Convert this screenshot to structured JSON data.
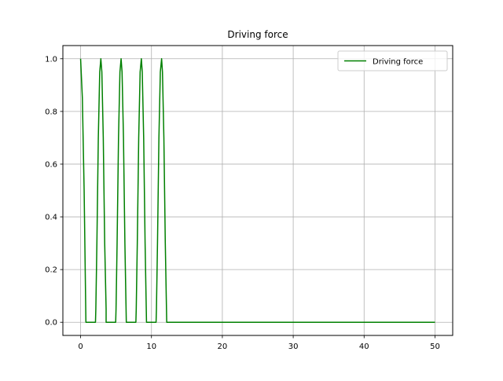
{
  "chart_data": {
    "type": "line",
    "title": "Driving force",
    "xlabel": "",
    "ylabel": "",
    "xlim": [
      -2.5,
      52.5
    ],
    "ylim": [
      -0.05,
      1.05
    ],
    "xticks": [
      0,
      10,
      20,
      30,
      40,
      50
    ],
    "xtick_labels": [
      "0",
      "10",
      "20",
      "30",
      "40",
      "50"
    ],
    "yticks": [
      0.0,
      0.2,
      0.4,
      0.6,
      0.8,
      1.0
    ],
    "ytick_labels": [
      "0.0",
      "0.2",
      "0.4",
      "0.6",
      "0.8",
      "1.0"
    ],
    "grid": true,
    "legend": {
      "position": "upper right"
    },
    "series": [
      {
        "name": "Driving force",
        "color": "#008000",
        "shape": "periodic pulses of |cos(π t / 2.857)|^4 style peaks clipped to 0, ending near t = 12",
        "x": [
          0,
          0.25,
          0.5,
          0.625,
          0.75,
          2.1,
          2.15,
          2.3,
          2.5,
          2.7,
          2.857,
          3.0,
          3.2,
          3.4,
          3.6,
          3.6,
          4.95,
          5.0,
          5.15,
          5.35,
          5.55,
          5.714,
          5.85,
          6.05,
          6.25,
          6.45,
          6.45,
          7.8,
          7.85,
          8.0,
          8.2,
          8.4,
          8.571,
          8.7,
          8.9,
          9.1,
          9.3,
          9.3,
          10.65,
          10.7,
          10.85,
          11.05,
          11.25,
          11.43,
          11.55,
          11.75,
          11.95,
          12.15,
          12.15,
          50
        ],
        "y": [
          1.0,
          0.85,
          0.5,
          0.25,
          0.0,
          0.0,
          0.05,
          0.3,
          0.7,
          0.95,
          1.0,
          0.95,
          0.7,
          0.3,
          0.05,
          0.0,
          0.0,
          0.05,
          0.3,
          0.7,
          0.95,
          1.0,
          0.95,
          0.7,
          0.3,
          0.0,
          0.0,
          0.0,
          0.05,
          0.3,
          0.7,
          0.95,
          1.0,
          0.95,
          0.7,
          0.3,
          0.0,
          0.0,
          0.0,
          0.05,
          0.3,
          0.7,
          0.95,
          1.0,
          0.95,
          0.7,
          0.3,
          0.0,
          0.0,
          0.0
        ]
      }
    ]
  }
}
